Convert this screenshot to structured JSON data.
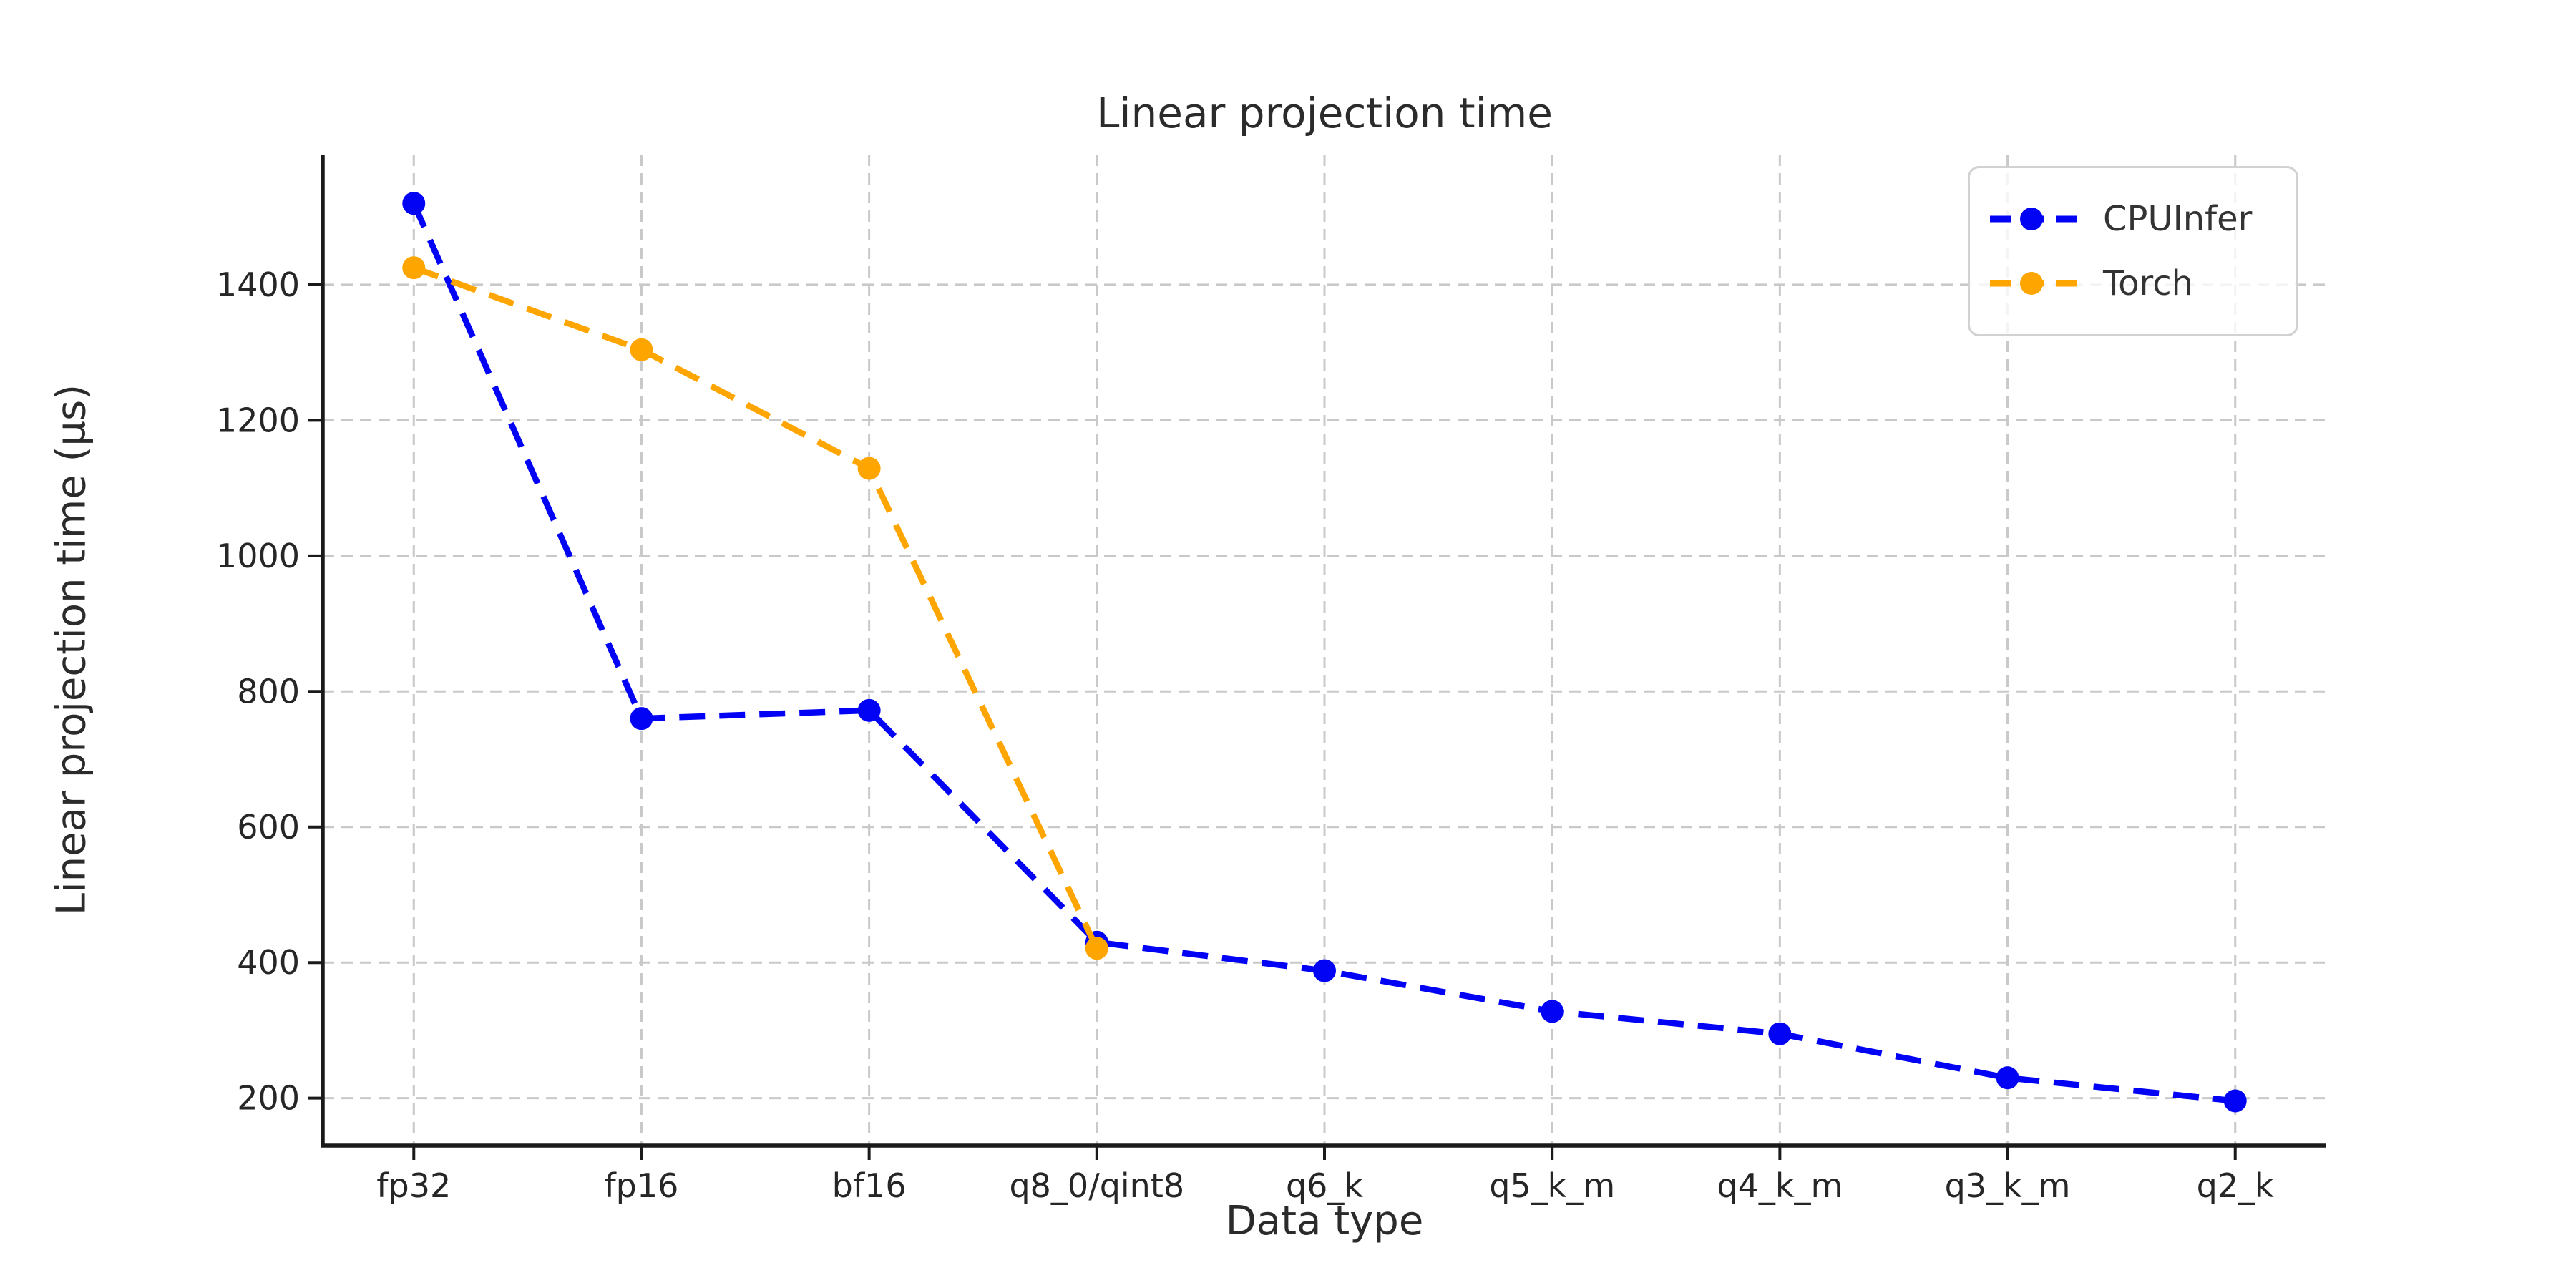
{
  "chart_data": {
    "type": "line",
    "title": "Linear projection time",
    "xlabel": "Data type",
    "ylabel": "Linear projection time (µs)",
    "categories": [
      "fp32",
      "fp16",
      "bf16",
      "q8_0/qint8",
      "q6_k",
      "q5_k_m",
      "q4_k_m",
      "q3_k_m",
      "q2_k"
    ],
    "series": [
      {
        "name": "CPUInfer",
        "color": "#0202f5",
        "linestyle": "dashed",
        "marker": "circle",
        "values": [
          1520,
          760,
          772,
          430,
          388,
          328,
          295,
          230,
          196
        ]
      },
      {
        "name": "Torch",
        "color": "#ffa500",
        "linestyle": "dashed",
        "marker": "circle",
        "values": [
          1425,
          1304,
          1129,
          421,
          null,
          null,
          null,
          null,
          null
        ]
      }
    ],
    "yticks": [
      200,
      400,
      600,
      800,
      1000,
      1200,
      1400
    ],
    "ylim": [
      130,
      1592
    ],
    "grid": true,
    "grid_style": "dashed",
    "legend_position": "upper right",
    "legend_entries": [
      "CPUInfer",
      "Torch"
    ]
  },
  "colors": {
    "background": "#ffffff",
    "grid": "#c9c9c9",
    "spine": "#1a1a1a",
    "tick": "#1a1a1a",
    "text": "#262626",
    "legend_border": "#d2d2d2"
  }
}
